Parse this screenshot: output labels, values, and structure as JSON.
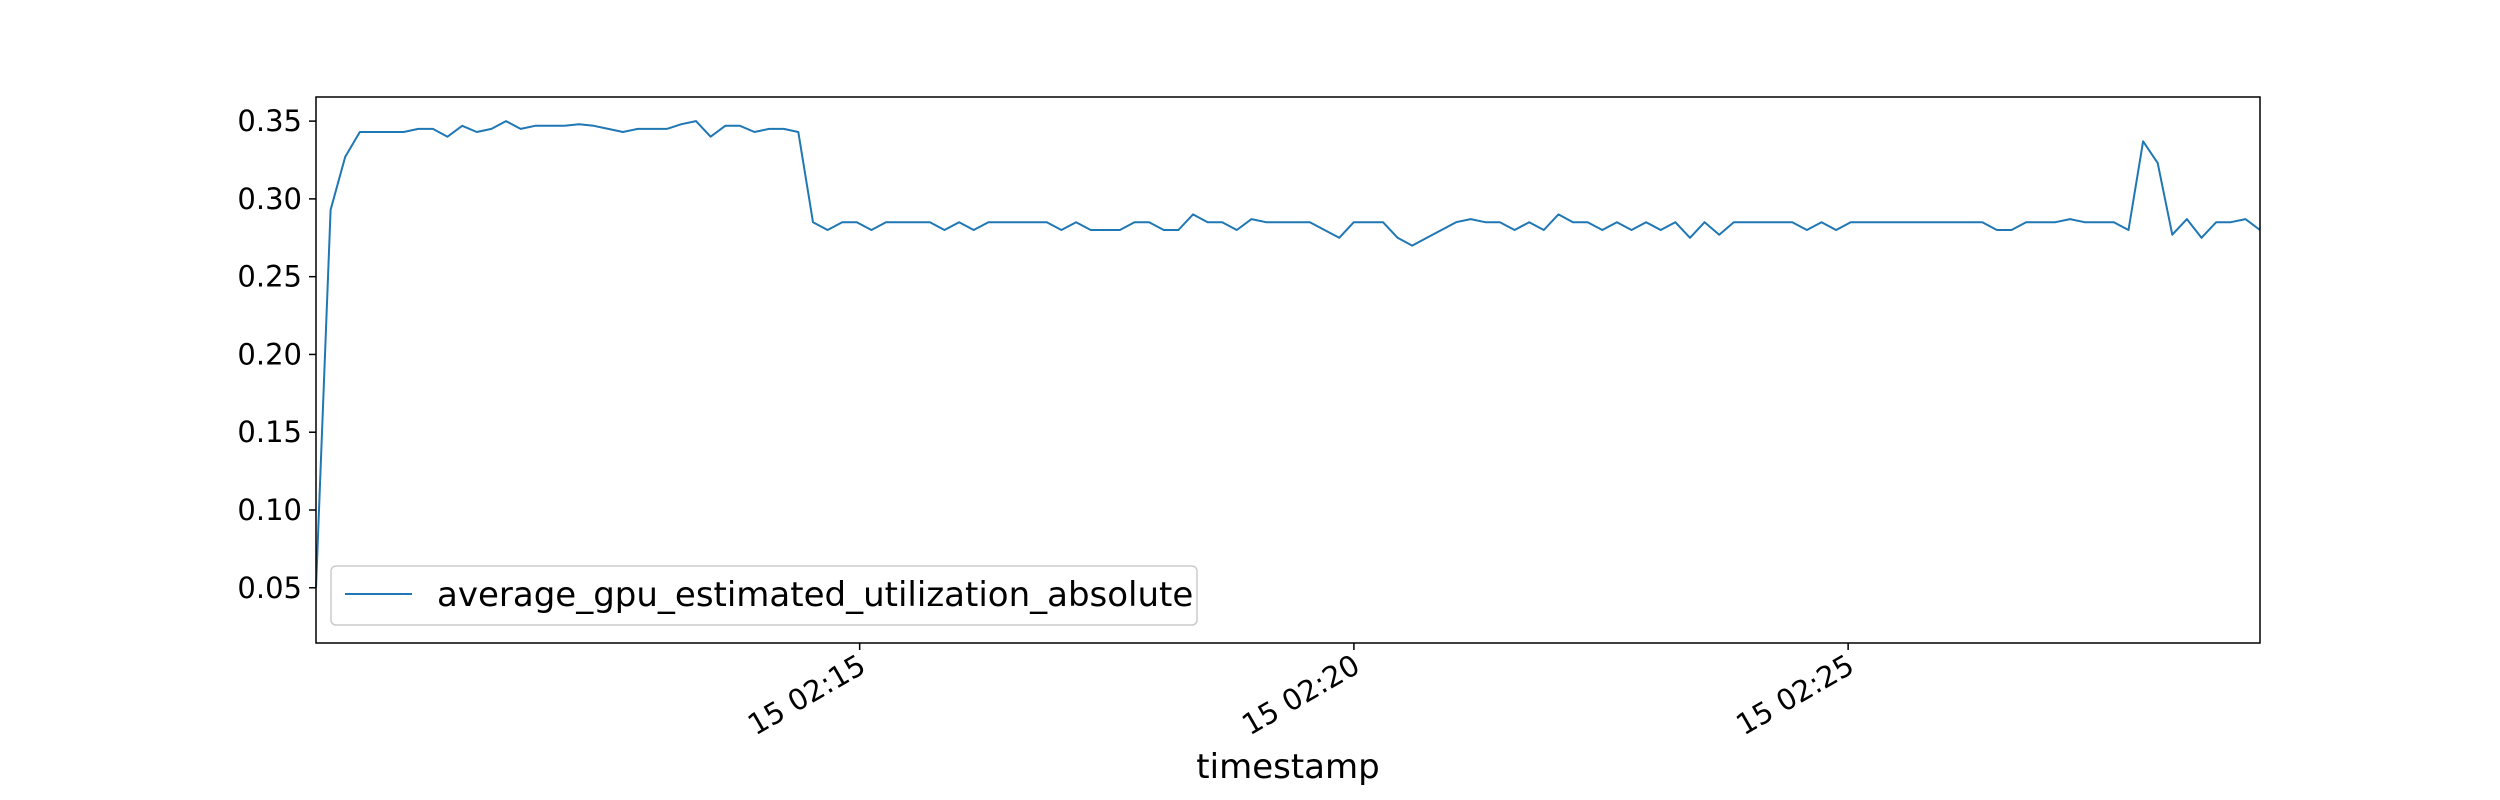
{
  "chart_data": {
    "type": "line",
    "title": "",
    "xlabel": "timestamp",
    "ylabel": "",
    "grid": false,
    "legend_position": "lower-left",
    "x_start": "15 02:09:30",
    "x_end": "15 02:29:10",
    "xlim": [
      "15 02:09:30",
      "15 02:29:10"
    ],
    "ylim": [
      0.0145,
      0.3655
    ],
    "x_ticks": [
      "15 02:15",
      "15 02:20",
      "15 02:25"
    ],
    "y_ticks": [
      "0.05",
      "0.10",
      "0.15",
      "0.20",
      "0.25",
      "0.30",
      "0.35"
    ],
    "series": [
      {
        "name": "average_gpu_estimated_utilization_absolute",
        "color": "#1f77b4",
        "values": [
          0.05,
          0.293,
          0.327,
          0.343,
          0.343,
          0.343,
          0.343,
          0.345,
          0.345,
          0.34,
          0.347,
          0.343,
          0.345,
          0.35,
          0.345,
          0.347,
          0.347,
          0.347,
          0.348,
          0.347,
          0.345,
          0.343,
          0.345,
          0.345,
          0.345,
          0.348,
          0.35,
          0.34,
          0.347,
          0.347,
          0.343,
          0.345,
          0.345,
          0.343,
          0.285,
          0.28,
          0.285,
          0.285,
          0.28,
          0.285,
          0.285,
          0.285,
          0.285,
          0.28,
          0.285,
          0.28,
          0.285,
          0.285,
          0.285,
          0.285,
          0.285,
          0.28,
          0.285,
          0.28,
          0.28,
          0.28,
          0.285,
          0.285,
          0.28,
          0.28,
          0.29,
          0.285,
          0.285,
          0.28,
          0.287,
          0.285,
          0.285,
          0.285,
          0.285,
          0.28,
          0.275,
          0.285,
          0.285,
          0.285,
          0.275,
          0.27,
          0.275,
          0.28,
          0.285,
          0.287,
          0.285,
          0.285,
          0.28,
          0.285,
          0.28,
          0.29,
          0.285,
          0.285,
          0.28,
          0.285,
          0.28,
          0.285,
          0.28,
          0.285,
          0.275,
          0.285,
          0.277,
          0.285,
          0.285,
          0.285,
          0.285,
          0.285,
          0.28,
          0.285,
          0.28,
          0.285,
          0.285,
          0.285,
          0.285,
          0.285,
          0.285,
          0.285,
          0.285,
          0.285,
          0.285,
          0.28,
          0.28,
          0.285,
          0.285,
          0.285,
          0.287,
          0.285,
          0.285,
          0.285,
          0.28,
          0.337,
          0.323,
          0.277,
          0.287,
          0.275,
          0.285,
          0.285,
          0.287,
          0.28
        ]
      }
    ]
  }
}
